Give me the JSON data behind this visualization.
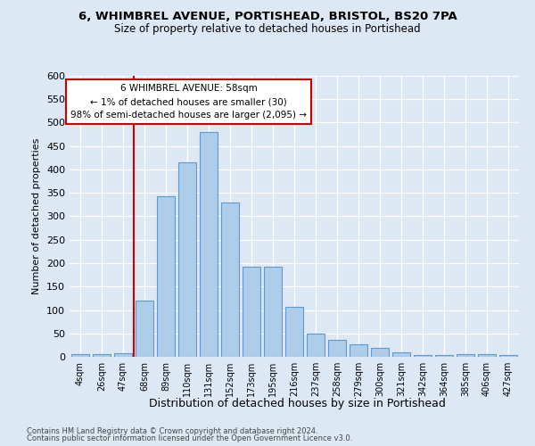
{
  "title1": "6, WHIMBREL AVENUE, PORTISHEAD, BRISTOL, BS20 7PA",
  "title2": "Size of property relative to detached houses in Portishead",
  "xlabel": "Distribution of detached houses by size in Portishead",
  "ylabel": "Number of detached properties",
  "categories": [
    "4sqm",
    "26sqm",
    "47sqm",
    "68sqm",
    "89sqm",
    "110sqm",
    "131sqm",
    "152sqm",
    "173sqm",
    "195sqm",
    "216sqm",
    "237sqm",
    "258sqm",
    "279sqm",
    "300sqm",
    "321sqm",
    "342sqm",
    "364sqm",
    "385sqm",
    "406sqm",
    "427sqm"
  ],
  "values": [
    6,
    6,
    8,
    120,
    343,
    416,
    480,
    330,
    192,
    192,
    107,
    49,
    36,
    27,
    19,
    9,
    4,
    4,
    5,
    5,
    4
  ],
  "bar_color": "#aecde8",
  "bar_edge_color": "#5b9bd5",
  "vline_position": 2.5,
  "vline_color": "#cc0000",
  "annotation_line1": "6 WHIMBREL AVENUE: 58sqm",
  "annotation_line2": "← 1% of detached houses are smaller (30)",
  "annotation_line3": "98% of semi-detached houses are larger (2,095) →",
  "annotation_box_facecolor": "#ffffff",
  "annotation_box_edgecolor": "#cc0000",
  "ylim": [
    0,
    600
  ],
  "yticks": [
    0,
    50,
    100,
    150,
    200,
    250,
    300,
    350,
    400,
    450,
    500,
    550,
    600
  ],
  "background_color": "#dde8f5",
  "grid_color": "#ffffff",
  "footer1": "Contains HM Land Registry data © Crown copyright and database right 2024.",
  "footer2": "Contains public sector information licensed under the Open Government Licence v3.0."
}
